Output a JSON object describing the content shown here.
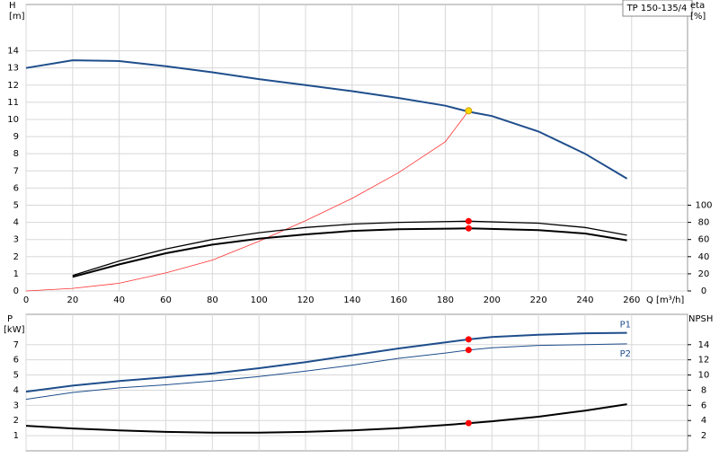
{
  "chart_data": [
    {
      "type": "line",
      "title": "TP 150-135/4",
      "y_label": "H",
      "y_unit": "[m]",
      "y2_label": "eta",
      "y2_unit": "[%]",
      "x_label": "Q [m³/h]",
      "xlim": [
        0,
        284
      ],
      "xticks": [
        0,
        20,
        40,
        60,
        80,
        100,
        120,
        140,
        160,
        180,
        200,
        220,
        240,
        260
      ],
      "ylim": [
        0,
        16.7
      ],
      "yticks": [
        0,
        1,
        2,
        3,
        4,
        5,
        6,
        7,
        8,
        9,
        10,
        11,
        12,
        13,
        14
      ],
      "y2lim": [
        0,
        334
      ],
      "y2ticks": [
        0,
        20,
        40,
        60,
        80,
        100
      ],
      "grid": true,
      "series": [
        {
          "color": "#1f4e8c",
          "width": 2,
          "x": [
            0,
            20,
            40,
            60,
            80,
            100,
            120,
            140,
            160,
            180,
            190,
            200,
            220,
            240,
            258
          ],
          "values": [
            13.0,
            13.45,
            13.4,
            13.1,
            12.75,
            12.35,
            12.0,
            11.65,
            11.25,
            10.8,
            10.45,
            10.2,
            9.3,
            8.0,
            6.55
          ]
        },
        {
          "color": "#ff3030",
          "width": 0.8,
          "x": [
            0,
            20,
            40,
            60,
            80,
            100,
            120,
            140,
            160,
            180,
            190
          ],
          "values": [
            0,
            0.15,
            0.45,
            1.05,
            1.8,
            2.9,
            4.1,
            5.4,
            6.9,
            8.7,
            10.5
          ]
        },
        {
          "color": "#000000",
          "width": 1.3,
          "axis": "y2",
          "x": [
            20,
            40,
            60,
            80,
            100,
            120,
            140,
            160,
            190,
            220,
            240,
            258
          ],
          "values": [
            18,
            35,
            49,
            60,
            68,
            74,
            78,
            80,
            81.4,
            79,
            74,
            65
          ]
        },
        {
          "color": "#000000",
          "width": 2,
          "axis": "y2",
          "x": [
            20,
            40,
            60,
            80,
            100,
            120,
            140,
            160,
            190,
            220,
            240,
            258
          ],
          "values": [
            16.4,
            31,
            44,
            54,
            61,
            66,
            70,
            72,
            73,
            71,
            67,
            59
          ]
        }
      ],
      "points": [
        {
          "x": 190,
          "y": 81.4,
          "axis": "y2",
          "color": "#ff0000"
        },
        {
          "x": 190,
          "y": 73,
          "axis": "y2",
          "color": "#ff0000"
        },
        {
          "x": 190,
          "y": 10.5,
          "color": "#ffd700"
        }
      ]
    },
    {
      "type": "line",
      "y_label": "P",
      "y_unit": "[kW]",
      "y2_label": "NPSH",
      "xlim": [
        0,
        284
      ],
      "xgrid": [
        0,
        20,
        40,
        60,
        80,
        100,
        120,
        140,
        160,
        180,
        200,
        220,
        240,
        260
      ],
      "ylim": [
        0,
        9
      ],
      "yticks": [
        1,
        2,
        3,
        4,
        5,
        6,
        7
      ],
      "y2lim": [
        0,
        18
      ],
      "y2ticks": [
        2,
        4,
        6,
        8,
        10,
        12,
        14
      ],
      "grid": true,
      "series": [
        {
          "name": "P1",
          "color": "#1f4e8c",
          "width": 2,
          "x": [
            0,
            20,
            40,
            60,
            80,
            100,
            120,
            140,
            160,
            180,
            190,
            200,
            220,
            240,
            258
          ],
          "values": [
            3.9,
            4.3,
            4.6,
            4.85,
            5.1,
            5.45,
            5.85,
            6.3,
            6.75,
            7.15,
            7.35,
            7.5,
            7.65,
            7.75,
            7.78
          ]
        },
        {
          "name": "P2",
          "color": "#1f4e8c",
          "width": 1,
          "x": [
            0,
            20,
            40,
            60,
            80,
            100,
            120,
            140,
            160,
            180,
            190,
            200,
            220,
            240,
            258
          ],
          "values": [
            3.4,
            3.85,
            4.15,
            4.35,
            4.6,
            4.9,
            5.25,
            5.65,
            6.1,
            6.45,
            6.65,
            6.8,
            6.95,
            7.0,
            7.05
          ]
        },
        {
          "color": "#000000",
          "width": 2,
          "axis": "y2",
          "x": [
            0,
            20,
            40,
            60,
            80,
            100,
            120,
            140,
            160,
            180,
            190,
            200,
            220,
            240,
            258
          ],
          "values": [
            3.3,
            2.95,
            2.7,
            2.5,
            2.4,
            2.4,
            2.5,
            2.7,
            3.0,
            3.4,
            3.65,
            3.9,
            4.5,
            5.3,
            6.15
          ]
        }
      ],
      "points": [
        {
          "x": 190,
          "y": 7.35,
          "color": "#ff0000"
        },
        {
          "x": 190,
          "y": 6.65,
          "color": "#ff0000"
        },
        {
          "x": 190,
          "y": 3.65,
          "axis": "y2",
          "color": "#ff0000"
        }
      ]
    }
  ]
}
